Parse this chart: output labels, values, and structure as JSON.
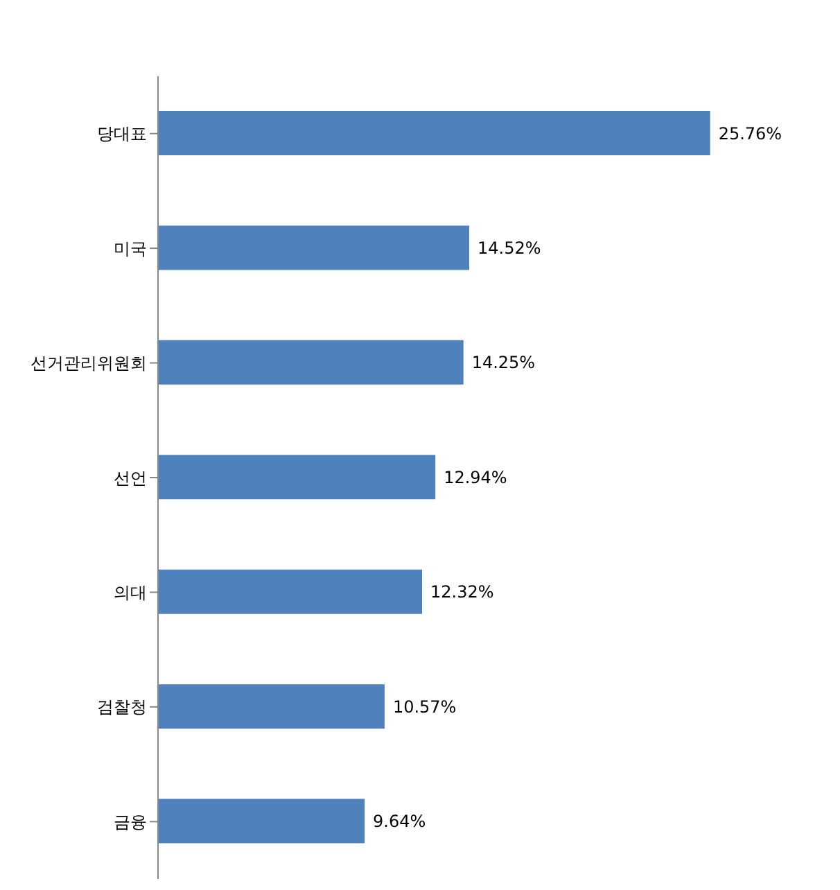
{
  "chart_data": {
    "type": "bar",
    "orientation": "horizontal",
    "categories": [
      "당대표",
      "미국",
      "선거관리위원회",
      "선언",
      "의대",
      "검찰청",
      "금융"
    ],
    "values": [
      25.76,
      14.52,
      14.25,
      12.94,
      12.32,
      10.57,
      9.64
    ],
    "value_labels": [
      "25.76%",
      "14.52%",
      "14.25%",
      "12.94%",
      "12.32%",
      "10.57%",
      "9.64%"
    ],
    "color": "#4f81bd"
  }
}
